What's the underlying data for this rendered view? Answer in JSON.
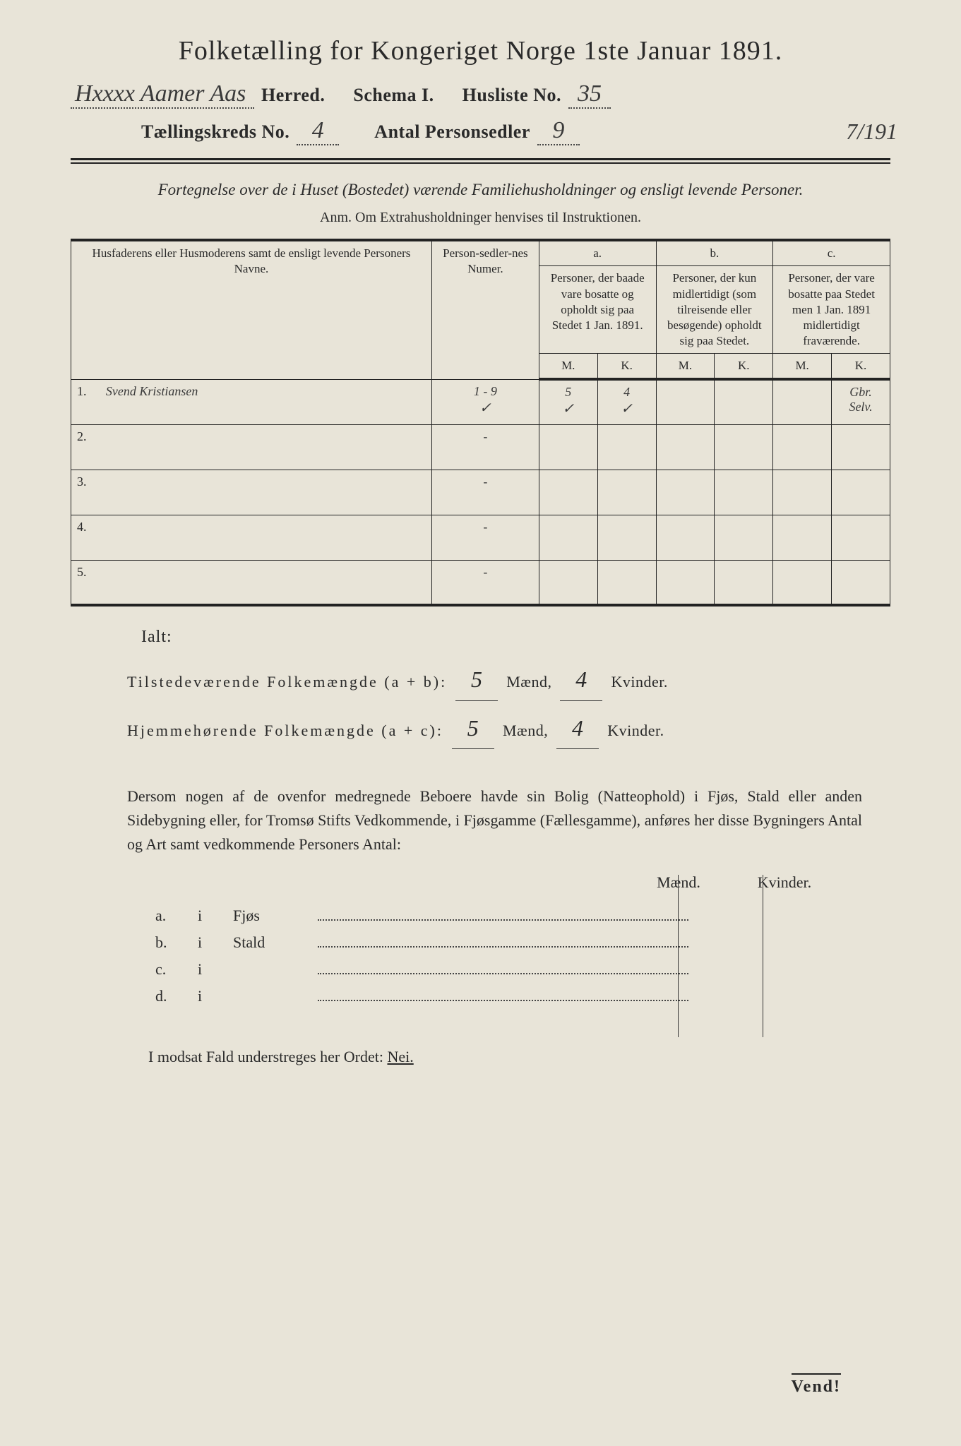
{
  "colors": {
    "background": "#e8e4d8",
    "text": "#2a2a2a",
    "rule": "#222222",
    "handwriting": "#3a3a3a",
    "dotted": "#444444"
  },
  "typography": {
    "body_family": "Georgia, Times New Roman, serif",
    "handwritten_family": "Brush Script MT, cursive",
    "title_pt": 38,
    "header_pt": 26,
    "intro_pt": 23,
    "table_pt": 18,
    "para_pt": 22
  },
  "title": "Folketælling for Kongeriget Norge 1ste Januar 1891.",
  "margin_note": "7/191",
  "header": {
    "herred_handwritten": "Hxxxx Aamer Aas",
    "herred_label": "Herred.",
    "schema_label": "Schema I.",
    "husliste_label": "Husliste No.",
    "husliste_no": "35",
    "kreds_label": "Tællingskreds No.",
    "kreds_no": "4",
    "personsedler_label": "Antal Personsedler",
    "personsedler_no": "9"
  },
  "intro": {
    "line": "Fortegnelse over de i Huset (Bostedet) værende Familiehusholdninger og ensligt levende Personer.",
    "anm": "Anm.   Om Extrahusholdninger henvises til Instruktionen."
  },
  "table": {
    "col_name": "Husfaderens eller Husmoderens samt de ensligt levende Personers Navne.",
    "col_pers": "Person-sedler-nes Numer.",
    "col_a_top": "a.",
    "col_a": "Personer, der baade vare bosatte og opholdt sig paa Stedet 1 Jan. 1891.",
    "col_b_top": "b.",
    "col_b": "Personer, der kun midlertidigt (som tilreisende eller besøgende) opholdt sig paa Stedet.",
    "col_c_top": "c.",
    "col_c": "Personer, der vare bosatte paa Stedet men 1 Jan. 1891 midlertidigt fraværende.",
    "m": "M.",
    "k": "K.",
    "rows": [
      {
        "num": "1.",
        "name": "Svend Kristiansen",
        "pers": "1 - 9",
        "a_m": "5",
        "a_k": "4",
        "b_m": "",
        "b_k": "",
        "c_m": "",
        "c_k": "Gbr. Selv.",
        "check_pers": "✓",
        "check_am": "✓",
        "check_ak": "✓"
      },
      {
        "num": "2.",
        "name": "",
        "pers": "-",
        "a_m": "",
        "a_k": "",
        "b_m": "",
        "b_k": "",
        "c_m": "",
        "c_k": ""
      },
      {
        "num": "3.",
        "name": "",
        "pers": "-",
        "a_m": "",
        "a_k": "",
        "b_m": "",
        "b_k": "",
        "c_m": "",
        "c_k": ""
      },
      {
        "num": "4.",
        "name": "",
        "pers": "-",
        "a_m": "",
        "a_k": "",
        "b_m": "",
        "b_k": "",
        "c_m": "",
        "c_k": ""
      },
      {
        "num": "5.",
        "name": "",
        "pers": "-",
        "a_m": "",
        "a_k": "",
        "b_m": "",
        "b_k": "",
        "c_m": "",
        "c_k": ""
      }
    ]
  },
  "ialt": "Ialt:",
  "totals": {
    "line1_label": "Tilstedeværende Folkemængde (a + b):",
    "line1_m": "5",
    "line1_k": "4",
    "line2_label": "Hjemmehørende Folkemængde (a + c):",
    "line2_m": "5",
    "line2_k": "4",
    "maend": "Mænd,",
    "kvinder": "Kvinder."
  },
  "para": "Dersom nogen af de ovenfor medregnede Beboere havde sin Bolig (Natteophold) i Fjøs, Stald eller anden Sidebygning eller, for Tromsø Stifts Vedkommende, i Fjøsgamme (Fællesgamme), anføres her disse Bygningers Antal og Art samt vedkommende Personers Antal:",
  "mkhead": {
    "m": "Mænd.",
    "k": "Kvinder."
  },
  "sublist": [
    {
      "label": "a.",
      "i": "i",
      "name": "Fjøs"
    },
    {
      "label": "b.",
      "i": "i",
      "name": "Stald"
    },
    {
      "label": "c.",
      "i": "i",
      "name": ""
    },
    {
      "label": "d.",
      "i": "i",
      "name": ""
    }
  ],
  "nei_line": {
    "pre": "I modsat Fald understreges her Ordet: ",
    "word": "Nei."
  },
  "vend": "Vend!"
}
